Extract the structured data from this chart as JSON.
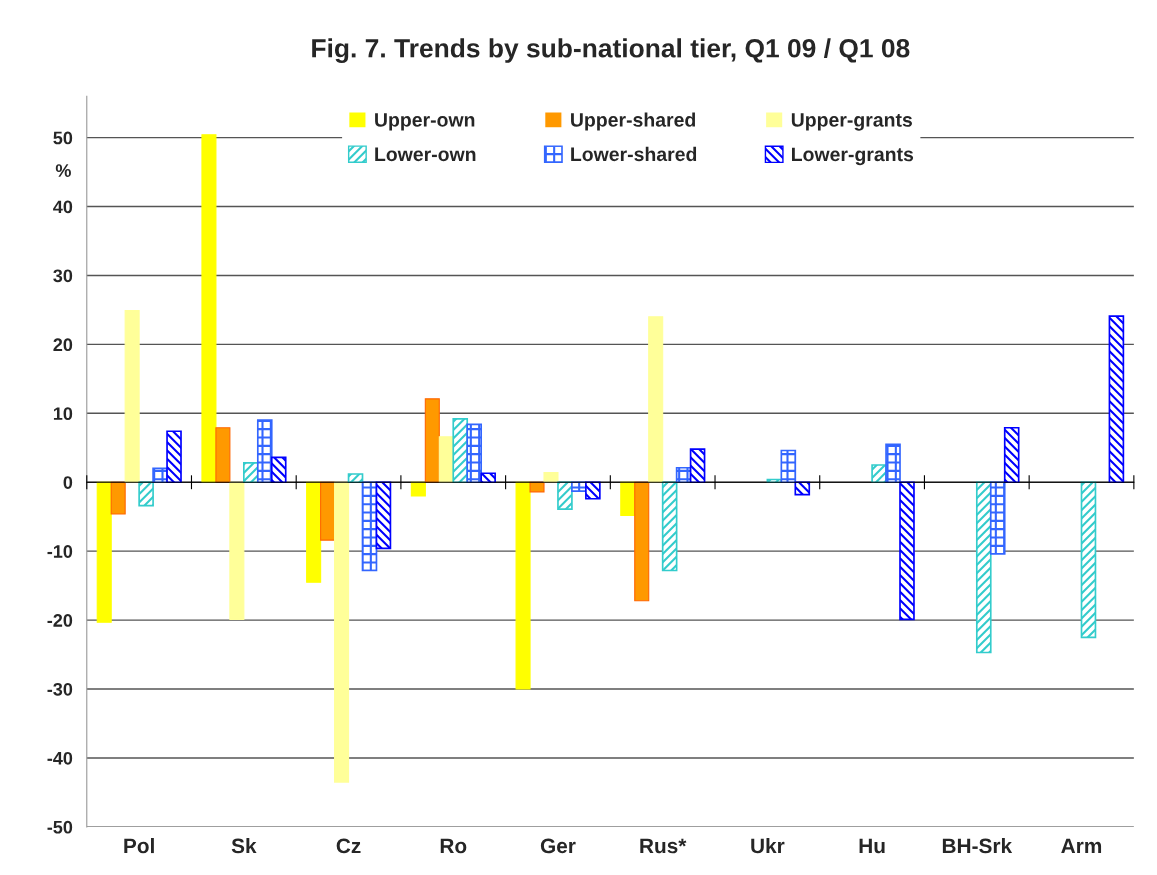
{
  "chart_data": {
    "type": "bar",
    "title": "Fig. 7. Trends by sub-national tier, Q1 09 / Q1 08",
    "ylabel": "%",
    "categories": [
      "Pol",
      "Sk",
      "Cz",
      "Ro",
      "Ger",
      "Rus*",
      "Ukr",
      "Hu",
      "BH-Srk",
      "Arm"
    ],
    "series": [
      {
        "name": "Upper-own",
        "color": "#ffff00",
        "values": [
          -20.3,
          50.4,
          -14.5,
          -2.0,
          -30.0,
          -4.8,
          null,
          null,
          null,
          null
        ]
      },
      {
        "name": "Upper-shared",
        "color": "#ff9900",
        "values": [
          -4.6,
          7.9,
          -8.4,
          12.1,
          -1.4,
          -17.2,
          null,
          null,
          null,
          null
        ]
      },
      {
        "name": "Upper-grants",
        "color": "#ffff99",
        "values": [
          24.9,
          -19.9,
          -43.5,
          6.6,
          1.4,
          24.0,
          null,
          null,
          null,
          null
        ]
      },
      {
        "name": "Lower-own",
        "color": "#33cccc",
        "values": [
          -3.4,
          2.8,
          1.2,
          9.2,
          -3.9,
          -12.8,
          0.4,
          2.5,
          -24.7,
          -22.5
        ]
      },
      {
        "name": "Lower-shared",
        "color": "#3366ff",
        "values": [
          2.0,
          9.0,
          -12.8,
          8.4,
          -1.3,
          2.1,
          4.6,
          5.5,
          -10.4,
          null
        ]
      },
      {
        "name": "Lower-grants",
        "color": "#0000ff",
        "values": [
          7.4,
          3.6,
          -9.6,
          1.3,
          -2.4,
          4.8,
          -1.8,
          -19.9,
          7.9,
          24.1
        ]
      }
    ],
    "ylim": [
      -50,
      56
    ],
    "yticks": [
      -50,
      -40,
      -30,
      -20,
      -10,
      0,
      10,
      20,
      30,
      40,
      50
    ],
    "grid": "y",
    "legend": "top"
  }
}
